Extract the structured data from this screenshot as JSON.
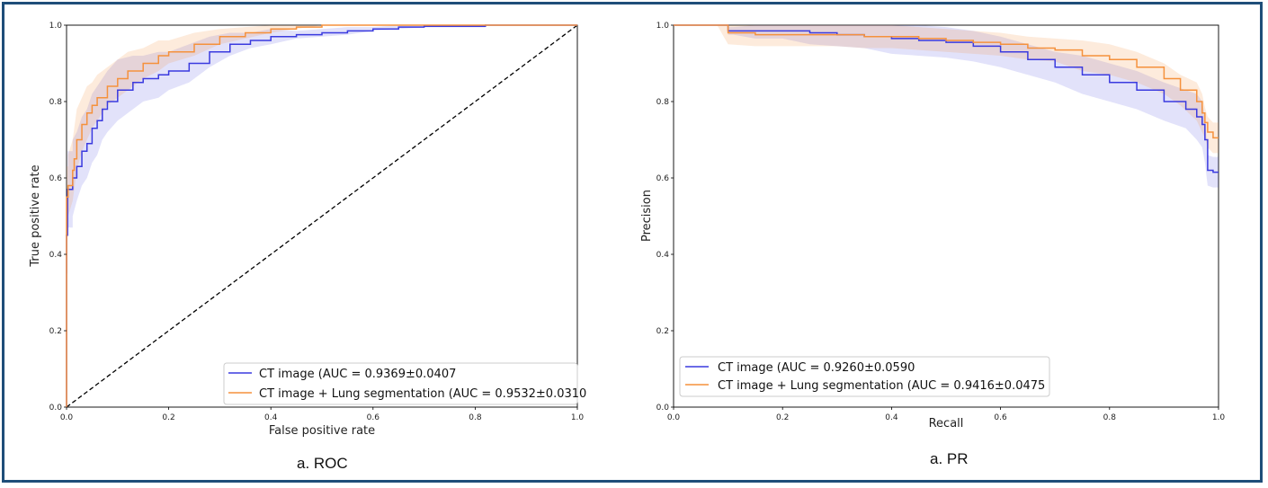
{
  "chart_data": [
    {
      "type": "line",
      "caption": "a. ROC",
      "xlabel": "False positive rate",
      "ylabel": "True positive rate",
      "xlim": [
        0,
        1.0
      ],
      "ylim": [
        0,
        1.0
      ],
      "xticks": [
        "0.0",
        "0.2",
        "0.4",
        "0.6",
        "0.8",
        "1.0"
      ],
      "yticks": [
        "0.0",
        "0.2",
        "0.4",
        "0.6",
        "0.8",
        "1.0"
      ],
      "grid": false,
      "legend_position": "lower-right",
      "colors": {
        "series1": "#3a3adf",
        "series2": "#f5913c",
        "diagonal": "#000000"
      },
      "series": [
        {
          "name": "CT image (AUC = 0.9369±0.0407",
          "x": [
            0,
            0,
            0.002,
            0.002,
            0.012,
            0.012,
            0.02,
            0.03,
            0.04,
            0.05,
            0.06,
            0.07,
            0.08,
            0.1,
            0.13,
            0.15,
            0.18,
            0.2,
            0.24,
            0.28,
            0.32,
            0.36,
            0.4,
            0.45,
            0.5,
            0.55,
            0.6,
            0.65,
            0.7,
            0.82,
            0.82,
            1.0
          ],
          "y": [
            0,
            0.45,
            0.45,
            0.57,
            0.57,
            0.6,
            0.63,
            0.67,
            0.69,
            0.73,
            0.75,
            0.78,
            0.8,
            0.83,
            0.85,
            0.86,
            0.87,
            0.88,
            0.9,
            0.93,
            0.95,
            0.96,
            0.97,
            0.975,
            0.98,
            0.985,
            0.99,
            0.995,
            0.997,
            0.997,
            1.0,
            1.0
          ],
          "band": [
            0.1,
            0.1,
            0.1,
            0.1,
            0.1,
            0.1,
            0.09,
            0.09,
            0.09,
            0.09,
            0.09,
            0.08,
            0.08,
            0.08,
            0.07,
            0.06,
            0.06,
            0.05,
            0.05,
            0.04,
            0.03,
            0.02,
            0.02,
            0.01,
            0.01,
            0.01,
            0.005,
            0.005,
            0.003,
            0.003,
            0,
            0
          ]
        },
        {
          "name": "CT image + Lung segmentation (AUC = 0.9532±0.0310",
          "x": [
            0,
            0,
            0.003,
            0.003,
            0.012,
            0.015,
            0.02,
            0.03,
            0.04,
            0.05,
            0.06,
            0.08,
            0.1,
            0.12,
            0.15,
            0.18,
            0.2,
            0.25,
            0.3,
            0.35,
            0.4,
            0.45,
            0.5,
            0.6,
            0.7,
            1.0
          ],
          "y": [
            0,
            0.55,
            0.55,
            0.58,
            0.62,
            0.65,
            0.7,
            0.74,
            0.77,
            0.79,
            0.81,
            0.84,
            0.86,
            0.88,
            0.9,
            0.92,
            0.93,
            0.95,
            0.97,
            0.98,
            0.99,
            0.995,
            1.0,
            1.0,
            1.0,
            1.0
          ],
          "band": [
            0.08,
            0.08,
            0.08,
            0.08,
            0.08,
            0.08,
            0.08,
            0.07,
            0.07,
            0.06,
            0.06,
            0.05,
            0.05,
            0.05,
            0.04,
            0.04,
            0.03,
            0.03,
            0.02,
            0.015,
            0.01,
            0.005,
            0,
            0,
            0,
            0
          ]
        }
      ],
      "reference_line": {
        "x": [
          0,
          1
        ],
        "y": [
          0,
          1
        ],
        "style": "dashed"
      }
    },
    {
      "type": "line",
      "caption": "a. PR",
      "xlabel": "Recall",
      "ylabel": "Precision",
      "xlim": [
        0,
        1.0
      ],
      "ylim": [
        0,
        1.0
      ],
      "xticks": [
        "0.0",
        "0.2",
        "0.4",
        "0.6",
        "0.8",
        "1.0"
      ],
      "yticks": [
        "0.0",
        "0.2",
        "0.4",
        "0.6",
        "0.8",
        "1.0"
      ],
      "grid": false,
      "legend_position": "lower-left",
      "colors": {
        "series1": "#3a3adf",
        "series2": "#f5913c"
      },
      "series": [
        {
          "name": "CT image (AUC = 0.9260±0.0590",
          "x": [
            0,
            0.1,
            0.1,
            0.11,
            0.15,
            0.2,
            0.25,
            0.3,
            0.35,
            0.4,
            0.45,
            0.5,
            0.55,
            0.6,
            0.65,
            0.7,
            0.75,
            0.8,
            0.85,
            0.9,
            0.94,
            0.96,
            0.97,
            0.975,
            0.98,
            0.99,
            1.0
          ],
          "y": [
            1.0,
            1.0,
            0.985,
            0.985,
            0.985,
            0.985,
            0.98,
            0.975,
            0.97,
            0.965,
            0.96,
            0.955,
            0.945,
            0.93,
            0.91,
            0.89,
            0.87,
            0.85,
            0.83,
            0.8,
            0.78,
            0.76,
            0.74,
            0.7,
            0.62,
            0.615,
            0.615
          ],
          "band": [
            0,
            0,
            0.01,
            0.01,
            0.02,
            0.02,
            0.03,
            0.03,
            0.03,
            0.04,
            0.04,
            0.04,
            0.04,
            0.04,
            0.04,
            0.04,
            0.05,
            0.05,
            0.05,
            0.05,
            0.05,
            0.06,
            0.06,
            0.06,
            0.04,
            0.04,
            0.04
          ]
        },
        {
          "name": "CT image + Lung segmentation (AUC = 0.9416±0.0475",
          "x": [
            0,
            0.08,
            0.1,
            0.15,
            0.2,
            0.25,
            0.3,
            0.35,
            0.4,
            0.45,
            0.5,
            0.55,
            0.6,
            0.65,
            0.7,
            0.75,
            0.8,
            0.85,
            0.9,
            0.93,
            0.96,
            0.97,
            0.975,
            0.98,
            0.99,
            1.0
          ],
          "y": [
            1.0,
            1.0,
            0.98,
            0.975,
            0.975,
            0.975,
            0.975,
            0.97,
            0.97,
            0.965,
            0.96,
            0.955,
            0.95,
            0.94,
            0.935,
            0.92,
            0.91,
            0.89,
            0.86,
            0.83,
            0.8,
            0.77,
            0.745,
            0.72,
            0.705,
            0.705
          ],
          "band": [
            0,
            0,
            0.03,
            0.03,
            0.03,
            0.03,
            0.03,
            0.03,
            0.03,
            0.03,
            0.03,
            0.03,
            0.03,
            0.03,
            0.03,
            0.04,
            0.04,
            0.04,
            0.04,
            0.04,
            0.05,
            0.05,
            0.04,
            0.04,
            0.04,
            0.04
          ]
        }
      ]
    }
  ]
}
